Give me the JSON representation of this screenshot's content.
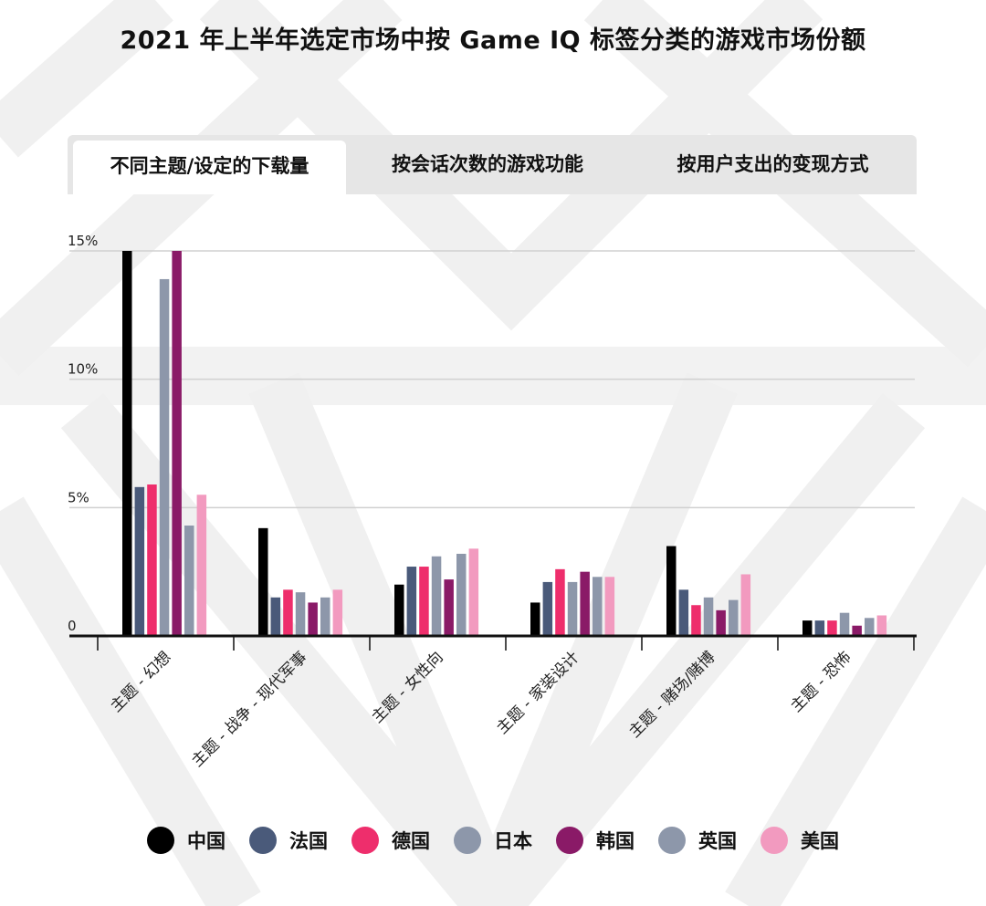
{
  "title": "2021 年上半年选定市场中按 Game IQ 标签分类的游戏市场份额",
  "tabs": [
    {
      "label": "不同主题/设定的下载量",
      "active": true
    },
    {
      "label": "按会话次数的游戏功能",
      "active": false
    },
    {
      "label": "按用户支出的变现方式",
      "active": false
    }
  ],
  "chart_data": {
    "type": "bar",
    "title": "",
    "xlabel": "",
    "ylabel": "",
    "ylim": [
      0,
      15
    ],
    "yticks": [
      {
        "value": 0,
        "label": "0"
      },
      {
        "value": 5,
        "label": "5%"
      },
      {
        "value": 10,
        "label": "10%"
      },
      {
        "value": 15,
        "label": "15%"
      }
    ],
    "grid": true,
    "legend_position": "bottom",
    "categories": [
      "主题 - 幻想",
      "主题 - 战争 - 现代军事",
      "主题 - 女性向",
      "主题 - 家装设计",
      "主题 - 赌场/赌博",
      "主题 - 恐怖"
    ],
    "series": [
      {
        "name": "中国",
        "color": "#000000",
        "values": [
          15.0,
          4.2,
          2.0,
          1.3,
          3.5,
          0.6
        ]
      },
      {
        "name": "法国",
        "color": "#4a5a7a",
        "values": [
          5.8,
          1.5,
          2.7,
          2.1,
          1.8,
          0.6
        ]
      },
      {
        "name": "德国",
        "color": "#ee2e6c",
        "values": [
          5.9,
          1.8,
          2.7,
          2.6,
          1.2,
          0.6
        ]
      },
      {
        "name": "日本",
        "color": "#8d97aa",
        "values": [
          13.9,
          1.7,
          3.1,
          2.1,
          1.5,
          0.9
        ]
      },
      {
        "name": "韩国",
        "color": "#8a1a67",
        "values": [
          15.0,
          1.3,
          2.2,
          2.5,
          1.0,
          0.4
        ]
      },
      {
        "name": "英国",
        "color": "#8d97aa",
        "values": [
          4.3,
          1.5,
          3.2,
          2.3,
          1.4,
          0.7
        ]
      },
      {
        "name": "美国",
        "color": "#f29abf",
        "values": [
          5.5,
          1.8,
          3.4,
          2.3,
          2.4,
          0.8
        ]
      }
    ]
  }
}
